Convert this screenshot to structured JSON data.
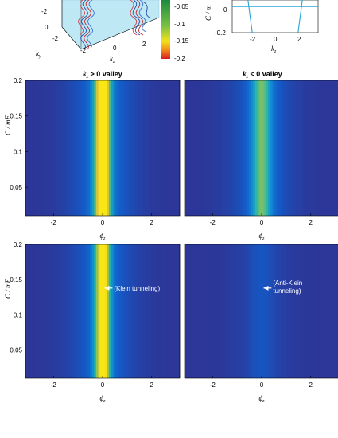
{
  "chart_data": [
    {
      "type": "3d-surface",
      "xlabel": "k_y",
      "ylabel": "k_z",
      "x_ticks": [
        "-2",
        "0",
        "2"
      ],
      "y_ticks": [
        "-2",
        "0",
        "2"
      ],
      "z_tick": "-2",
      "colorbar": {
        "ticks": [
          "-0.05",
          "-0.1",
          "-0.15",
          "-0.2"
        ],
        "range": [
          -0.2,
          0
        ]
      }
    },
    {
      "type": "line",
      "xlabel": "k_z",
      "ylabel": "C / mF",
      "x_ticks": [
        "-2",
        "0",
        "2"
      ],
      "y_ticks": [
        "0",
        "-0.2"
      ],
      "xlim": [
        -3,
        3
      ],
      "ylim": [
        -0.2,
        0.05
      ],
      "series": [
        {
          "x": [
            -1.9,
            -1.6
          ],
          "y": [
            0.05,
            -0.2
          ]
        },
        {
          "x": [
            1.9,
            1.6
          ],
          "y": [
            0.05,
            -0.2
          ]
        },
        {
          "x": [
            -3,
            3
          ],
          "y": [
            0,
            0
          ]
        }
      ]
    },
    {
      "type": "heatmap",
      "title": "k_z > 0 valley",
      "xlabel": "ϕ_z",
      "ylabel": "C / mF",
      "xlim": [
        -3.1416,
        3.1416
      ],
      "ylim": [
        0.01,
        0.2
      ],
      "x_ticks": [
        -2,
        0,
        2
      ],
      "y_ticks": [
        0.05,
        0.1,
        0.15,
        0.2
      ],
      "peak_x": 0,
      "peak_value": 1.0,
      "peak_width": 0.3,
      "halo": 0.45
    },
    {
      "type": "heatmap",
      "title": "k_z < 0 valley",
      "xlabel": "ϕ_z",
      "ylabel": "",
      "xlim": [
        -3.1416,
        3.1416
      ],
      "ylim": [
        0.01,
        0.2
      ],
      "x_ticks": [
        -2,
        0,
        2
      ],
      "y_ticks": [],
      "peak_x": 0,
      "peak_value": 0.55,
      "peak_width": 0.35,
      "halo": 0.35
    },
    {
      "type": "heatmap",
      "title": "",
      "xlabel": "ϕ_z",
      "ylabel": "C / mF",
      "xlim": [
        -3.1416,
        3.1416
      ],
      "ylim": [
        0.01,
        0.2
      ],
      "x_ticks": [
        -2,
        0,
        2
      ],
      "y_ticks": [
        0.05,
        0.1,
        0.15,
        0.2
      ],
      "peak_x": 0,
      "peak_value": 0.95,
      "peak_width": 0.28,
      "halo": 0.4,
      "annotation": {
        "text": [
          "(Klein tunneling)"
        ],
        "x": 0.4,
        "y": 0.138
      }
    },
    {
      "type": "heatmap",
      "title": "",
      "xlabel": "ϕ_z",
      "ylabel": "",
      "xlim": [
        -3.1416,
        3.1416
      ],
      "ylim": [
        0.01,
        0.2
      ],
      "x_ticks": [
        -2,
        0,
        2
      ],
      "y_ticks": [],
      "peak_x": 0,
      "peak_value": 0.06,
      "peak_width": 0.5,
      "halo": 0.1,
      "annotation": {
        "text": [
          "(Anti-Klein",
          "tunneling)"
        ],
        "x": 0.4,
        "y": 0.138
      }
    }
  ]
}
